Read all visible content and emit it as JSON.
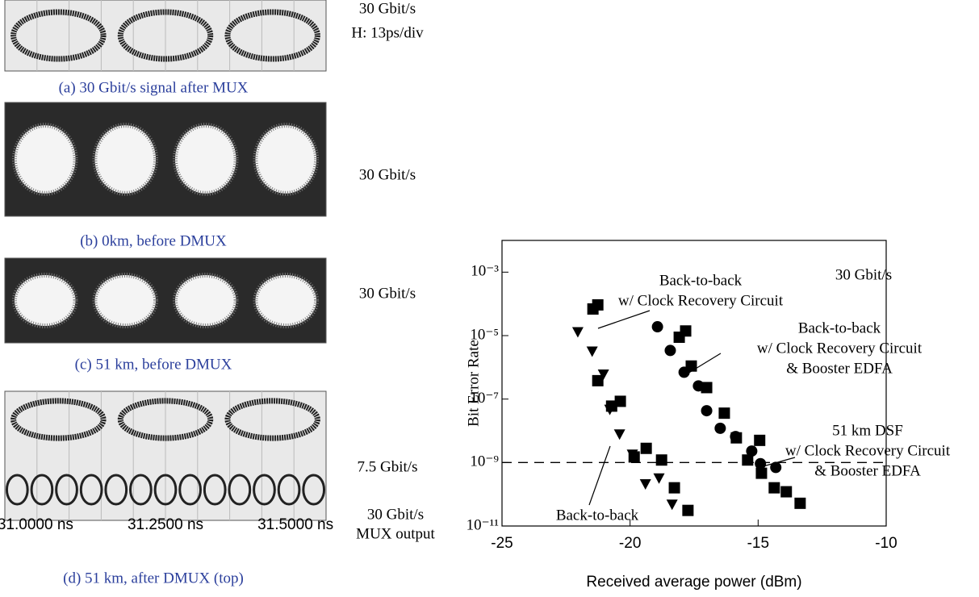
{
  "panels": [
    {
      "caption": "(a) 30 Gbit/s signal after MUX",
      "labels": [
        "30 Gbit/s",
        "H: 13ps/div"
      ]
    },
    {
      "caption": "(b) 0km, before DMUX",
      "labels": [
        "30 Gbit/s"
      ]
    },
    {
      "caption": "(c) 51 km, before DMUX",
      "labels": [
        "30 Gbit/s"
      ]
    },
    {
      "caption": "(d) 51 km, after DMUX (top)",
      "labels": [
        "7.5 Gbit/s",
        "30 Gbit/s",
        "MUX output"
      ],
      "time_labels": [
        "31.0000 ns",
        "31.2500 ns",
        "31.5000 ns"
      ]
    }
  ],
  "chart_data": {
    "type": "scatter",
    "log_y": true,
    "xlabel": "Received average power (dBm)",
    "ylabel": "Bit Error Rate",
    "xlim": [
      -25,
      -10
    ],
    "xticks": [
      -25,
      -20,
      -15,
      -10
    ],
    "ylim": [
      1e-11,
      0.01
    ],
    "yticks": [
      {
        "value": 0.001,
        "label": "10⁻³"
      },
      {
        "value": 1e-05,
        "label": "10⁻⁵"
      },
      {
        "value": 1e-07,
        "label": "10⁻⁷"
      },
      {
        "value": 1e-09,
        "label": "10⁻⁹"
      },
      {
        "value": 1e-11,
        "label": "10⁻¹¹"
      }
    ],
    "reference_line": 1e-09,
    "annotations": [
      {
        "lines": [
          "30 Gbit/s"
        ]
      },
      {
        "lines": [
          "Back-to-back",
          "w/ Clock Recovery Circuit"
        ]
      },
      {
        "lines": [
          "Back-to-back",
          "w/ Clock Recovery Circuit",
          "& Booster EDFA"
        ]
      },
      {
        "lines": [
          "51 km DSF",
          "w/ Clock Recovery Circuit",
          "& Booster EDFA"
        ]
      },
      {
        "lines": [
          "Back-to-back"
        ]
      }
    ],
    "series": [
      {
        "marker": "triangle",
        "color": "#000000",
        "x": [
          -22.04,
          -21.48,
          -21.04,
          -20.79,
          -20.41,
          -19.91,
          -19.4,
          -18.87,
          -18.36
        ],
        "values": [
          1.3e-05,
          3.2e-06,
          6e-07,
          4.7e-08,
          7.8e-09,
          1.8e-09,
          2.1e-10,
          3.2e-10,
          4.8e-11
        ]
      },
      {
        "marker": "square",
        "color": "#000000",
        "x": [
          -21.45,
          -21.26,
          -21.26,
          -20.72,
          -20.38,
          -19.84,
          -19.37,
          -18.77,
          -18.27,
          -17.74
        ],
        "values": [
          6.9e-05,
          9.3e-05,
          3.8e-07,
          6e-08,
          8.5e-08,
          1.5e-09,
          2.8e-09,
          1.2e-09,
          1.6e-10,
          3.1e-11
        ]
      },
      {
        "marker": "circle",
        "color": "#000000",
        "x": [
          -18.93,
          -18.43,
          -17.89,
          -17.33,
          -17.01,
          -16.48,
          -15.88,
          -15.25,
          -14.91,
          -14.31
        ],
        "values": [
          1.9e-05,
          3.4e-06,
          7e-07,
          2.6e-07,
          4.3e-08,
          1.2e-08,
          6.6e-09,
          2.3e-09,
          9.2e-10,
          7e-10
        ]
      },
      {
        "marker": "square",
        "color": "#000000",
        "x": [
          -18.08,
          -17.83,
          -17.61,
          -17.01,
          -16.32,
          -15.85,
          -15.41,
          -14.94,
          -14.87,
          -14.37,
          -13.9,
          -13.36
        ],
        "values": [
          8.9e-06,
          1.4e-05,
          1.1e-06,
          2.3e-07,
          3.6e-08,
          6e-09,
          1.2e-09,
          5e-09,
          4.6e-10,
          1.6e-10,
          1.2e-10,
          5.2e-11
        ]
      }
    ]
  }
}
